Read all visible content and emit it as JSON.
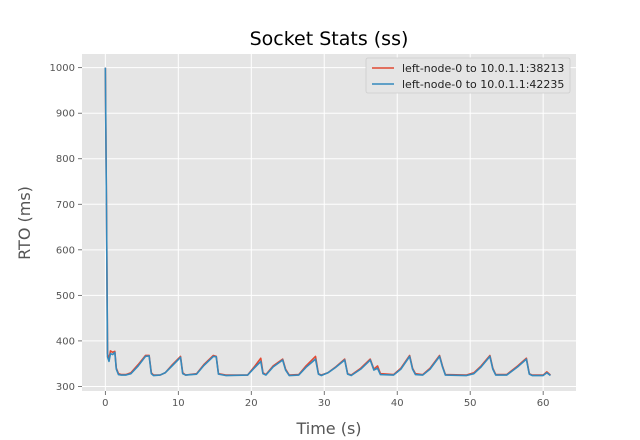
{
  "chart_data": {
    "type": "line",
    "title": "Socket Stats (ss)",
    "xlabel": "Time (s)",
    "ylabel": "RTO (ms)",
    "xlim": [
      -3.2,
      64.5
    ],
    "ylim": [
      290,
      1030
    ],
    "xticks": [
      0,
      10,
      20,
      30,
      40,
      50,
      60
    ],
    "yticks": [
      300,
      400,
      500,
      600,
      700,
      800,
      900,
      1000
    ],
    "grid": true,
    "legend_position": "top-right",
    "colors": {
      "background": "#e5e5e5",
      "grid": "#ffffff",
      "series_1": "#e24a33",
      "series_2": "#348abd"
    },
    "series": [
      {
        "name": "left-node-0 to 10.0.1.1:38213",
        "points": [
          [
            0,
            1000
          ],
          [
            0.15,
            700
          ],
          [
            0.3,
            372
          ],
          [
            0.5,
            360
          ],
          [
            0.7,
            378
          ],
          [
            1.0,
            375
          ],
          [
            1.3,
            377
          ],
          [
            1.5,
            340
          ],
          [
            1.8,
            328
          ],
          [
            2.2,
            326
          ],
          [
            2.8,
            326
          ],
          [
            3.5,
            330
          ],
          [
            4.5,
            348
          ],
          [
            5.5,
            368
          ],
          [
            6.0,
            368
          ],
          [
            6.3,
            330
          ],
          [
            6.6,
            325
          ],
          [
            7.5,
            325
          ],
          [
            8.2,
            330
          ],
          [
            9.2,
            348
          ],
          [
            10.3,
            366
          ],
          [
            10.6,
            330
          ],
          [
            11.0,
            325
          ],
          [
            12.5,
            328
          ],
          [
            13.5,
            348
          ],
          [
            14.8,
            368
          ],
          [
            15.2,
            366
          ],
          [
            15.5,
            328
          ],
          [
            16.5,
            325
          ],
          [
            19.5,
            325
          ],
          [
            20.5,
            345
          ],
          [
            21.3,
            362
          ],
          [
            21.6,
            330
          ],
          [
            22.0,
            326
          ],
          [
            23.0,
            345
          ],
          [
            24.3,
            360
          ],
          [
            24.7,
            338
          ],
          [
            25.2,
            325
          ],
          [
            26.5,
            326
          ],
          [
            27.5,
            345
          ],
          [
            28.8,
            366
          ],
          [
            29.2,
            328
          ],
          [
            29.6,
            325
          ],
          [
            30.5,
            330
          ],
          [
            31.5,
            342
          ],
          [
            32.8,
            360
          ],
          [
            33.2,
            328
          ],
          [
            33.7,
            325
          ],
          [
            35.0,
            340
          ],
          [
            36.3,
            360
          ],
          [
            36.8,
            338
          ],
          [
            37.3,
            345
          ],
          [
            37.7,
            328
          ],
          [
            39.5,
            326
          ],
          [
            40.5,
            340
          ],
          [
            41.7,
            368
          ],
          [
            42.1,
            340
          ],
          [
            42.5,
            328
          ],
          [
            43.5,
            326
          ],
          [
            44.5,
            340
          ],
          [
            45.8,
            368
          ],
          [
            46.2,
            345
          ],
          [
            46.6,
            326
          ],
          [
            49.5,
            325
          ],
          [
            50.5,
            330
          ],
          [
            51.5,
            345
          ],
          [
            52.7,
            368
          ],
          [
            53.1,
            340
          ],
          [
            53.5,
            326
          ],
          [
            55.0,
            326
          ],
          [
            56.5,
            345
          ],
          [
            57.7,
            362
          ],
          [
            58.1,
            328
          ],
          [
            58.5,
            325
          ],
          [
            60.0,
            325
          ],
          [
            60.5,
            332
          ],
          [
            61.0,
            325
          ]
        ]
      },
      {
        "name": "left-node-0 to 10.0.1.1:42235",
        "points": [
          [
            0,
            1000
          ],
          [
            0.15,
            700
          ],
          [
            0.3,
            365
          ],
          [
            0.5,
            355
          ],
          [
            0.7,
            372
          ],
          [
            1.0,
            370
          ],
          [
            1.3,
            375
          ],
          [
            1.5,
            338
          ],
          [
            1.8,
            326
          ],
          [
            2.2,
            325
          ],
          [
            2.8,
            325
          ],
          [
            3.5,
            328
          ],
          [
            4.5,
            345
          ],
          [
            5.5,
            366
          ],
          [
            6.0,
            367
          ],
          [
            6.3,
            328
          ],
          [
            6.6,
            324
          ],
          [
            7.5,
            325
          ],
          [
            8.2,
            330
          ],
          [
            9.2,
            346
          ],
          [
            10.3,
            364
          ],
          [
            10.6,
            328
          ],
          [
            11.0,
            325
          ],
          [
            12.5,
            327
          ],
          [
            13.5,
            346
          ],
          [
            14.8,
            366
          ],
          [
            15.2,
            365
          ],
          [
            15.5,
            327
          ],
          [
            16.5,
            324
          ],
          [
            19.5,
            325
          ],
          [
            20.5,
            342
          ],
          [
            21.3,
            355
          ],
          [
            21.6,
            328
          ],
          [
            22.0,
            325
          ],
          [
            23.0,
            343
          ],
          [
            24.3,
            358
          ],
          [
            24.7,
            336
          ],
          [
            25.2,
            324
          ],
          [
            26.5,
            325
          ],
          [
            27.5,
            342
          ],
          [
            28.8,
            360
          ],
          [
            29.2,
            327
          ],
          [
            29.6,
            324
          ],
          [
            30.5,
            330
          ],
          [
            31.5,
            341
          ],
          [
            32.8,
            358
          ],
          [
            33.2,
            327
          ],
          [
            33.7,
            324
          ],
          [
            35.0,
            338
          ],
          [
            36.3,
            358
          ],
          [
            36.8,
            336
          ],
          [
            37.3,
            340
          ],
          [
            37.7,
            326
          ],
          [
            39.5,
            325
          ],
          [
            40.5,
            338
          ],
          [
            41.7,
            366
          ],
          [
            42.1,
            338
          ],
          [
            42.5,
            326
          ],
          [
            43.5,
            325
          ],
          [
            44.5,
            338
          ],
          [
            45.8,
            366
          ],
          [
            46.2,
            343
          ],
          [
            46.6,
            325
          ],
          [
            49.5,
            324
          ],
          [
            50.5,
            328
          ],
          [
            51.5,
            343
          ],
          [
            52.7,
            366
          ],
          [
            53.1,
            338
          ],
          [
            53.5,
            325
          ],
          [
            55.0,
            325
          ],
          [
            56.5,
            343
          ],
          [
            57.7,
            360
          ],
          [
            58.1,
            327
          ],
          [
            58.5,
            324
          ],
          [
            60.0,
            324
          ],
          [
            60.5,
            330
          ],
          [
            61.0,
            324
          ]
        ]
      }
    ]
  }
}
